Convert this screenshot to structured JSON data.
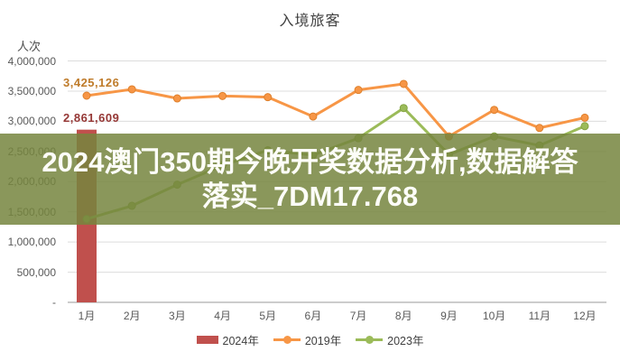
{
  "chart": {
    "title": "入境旅客",
    "unit_label": "人次"
  },
  "watermark": {
    "line1": "2024澳门350期今晚开奖数据分析,数据解答",
    "line2": "落实_7DM17.768"
  },
  "chart_data": {
    "type": "combo-bar-line",
    "title": "入境旅客",
    "ylabel": "人次",
    "xlabel": "",
    "grid": true,
    "legend_position": "bottom",
    "ylim": [
      0,
      4000000
    ],
    "categories": [
      "1月",
      "2月",
      "3月",
      "4月",
      "5月",
      "6月",
      "7月",
      "8月",
      "9月",
      "10月",
      "11月",
      "12月"
    ],
    "series": [
      {
        "name": "2024年",
        "type": "bar",
        "color": "#C0504D",
        "values": [
          2861609,
          null,
          null,
          null,
          null,
          null,
          null,
          null,
          null,
          null,
          null,
          null
        ]
      },
      {
        "name": "2019年",
        "type": "line",
        "color": "#F79646",
        "marker_stroke": "#DE802C",
        "values": [
          3425126,
          3530000,
          3380000,
          3420000,
          3400000,
          3080000,
          3520000,
          3620000,
          2750000,
          3190000,
          2890000,
          3060000
        ]
      },
      {
        "name": "2023年",
        "type": "line",
        "color": "#9BBB59",
        "marker_stroke": "#84A443",
        "values": [
          1380000,
          1600000,
          1950000,
          2270000,
          2520000,
          2440000,
          2720000,
          3220000,
          2450000,
          2750000,
          2600000,
          2920000
        ]
      }
    ],
    "y_ticks": {
      "values": [
        4000000,
        3500000,
        3000000,
        2500000,
        2000000,
        1500000,
        1000000,
        500000,
        0
      ],
      "labels": [
        "4,000,000",
        "3,500,000",
        "3,000,000",
        "2,500,000",
        "2,000,000",
        "1,500,000",
        "1,000,000",
        "500,000",
        "-"
      ]
    },
    "annotations": [
      {
        "text": "3,425,126",
        "series": "2019年",
        "category": "1月",
        "color": "#BF7B2A",
        "x": 70,
        "y": 84
      },
      {
        "text": "2,861,609",
        "series": "2024年",
        "category": "1月",
        "color": "#953735",
        "x": 70,
        "y": 123
      }
    ],
    "colors": {
      "gridline": "#DCDCDC",
      "axis_line": "#ADADAD",
      "watermark_band": "rgba(117,133,62,0.85)"
    }
  }
}
